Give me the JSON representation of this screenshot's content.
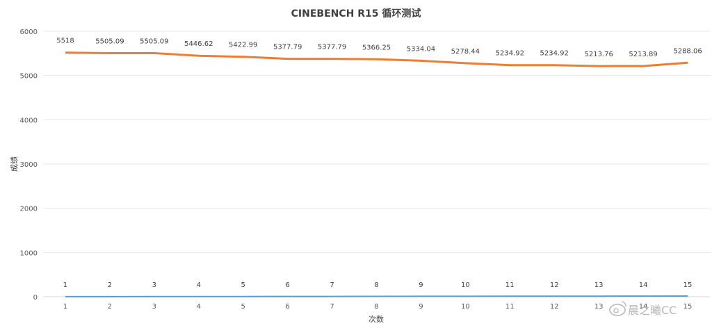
{
  "chart_data": {
    "type": "line",
    "title": "CINEBENCH R15 循环测试",
    "xlabel": "次数",
    "ylabel": "成绩",
    "categories": [
      "1",
      "2",
      "3",
      "4",
      "5",
      "6",
      "7",
      "8",
      "9",
      "10",
      "11",
      "12",
      "13",
      "14",
      "15"
    ],
    "ylim": [
      0,
      6000
    ],
    "yticks": [
      0,
      1000,
      2000,
      3000,
      4000,
      5000,
      6000
    ],
    "grid": true,
    "series": [
      {
        "color": "#ed7d31",
        "values": [
          5518,
          5505.09,
          5505.09,
          5446.62,
          5422.99,
          5377.79,
          5377.79,
          5366.25,
          5334.04,
          5278.44,
          5234.92,
          5234.92,
          5213.76,
          5213.89,
          5288.06
        ],
        "labels": [
          "5518",
          "5505.09",
          "5505.09",
          "5446.62",
          "5422.99",
          "5377.79",
          "5377.79",
          "5366.25",
          "5334.04",
          "5278.44",
          "5234.92",
          "5234.92",
          "5213.76",
          "5213.89",
          "5288.06"
        ]
      },
      {
        "color": "#5b9bd5",
        "values": [
          1,
          2,
          3,
          4,
          5,
          6,
          7,
          8,
          9,
          10,
          11,
          12,
          13,
          14,
          15
        ],
        "labels": [
          "1",
          "2",
          "3",
          "4",
          "5",
          "6",
          "7",
          "8",
          "9",
          "10",
          "11",
          "12",
          "13",
          "14",
          "15"
        ]
      }
    ]
  },
  "watermark": "晨之曦CC",
  "watermark_icon": "weibo-icon"
}
